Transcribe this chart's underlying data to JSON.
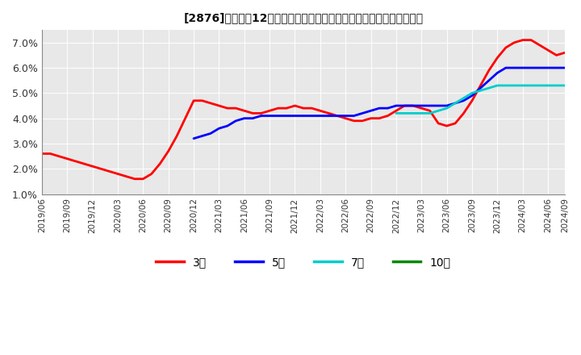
{
  "title_text": "[2876]　売上高12か月移動合計の対前年同期増減率の標準偏差の推移",
  "ylim": [
    0.01,
    0.075
  ],
  "yticks": [
    0.01,
    0.02,
    0.03,
    0.04,
    0.05,
    0.06,
    0.07
  ],
  "ytick_labels": [
    "1.0%",
    "2.0%",
    "3.0%",
    "4.0%",
    "5.0%",
    "6.0%",
    "7.0%"
  ],
  "series": {
    "3年": {
      "color": "#ff0000",
      "linewidth": 2.0,
      "x": [
        0,
        1,
        2,
        3,
        4,
        5,
        6,
        7,
        8,
        9,
        10,
        11,
        12,
        13,
        14,
        15,
        16,
        17,
        18,
        19,
        20,
        21,
        22,
        23,
        24,
        25,
        26,
        27,
        28,
        29,
        30,
        31,
        32,
        33,
        34,
        35,
        36,
        37,
        38,
        39,
        40,
        41,
        42,
        43,
        44,
        45,
        46,
        47,
        48,
        49,
        50,
        51,
        52,
        53,
        54,
        55,
        56,
        57,
        58,
        59,
        60,
        61,
        62
      ],
      "y": [
        0.026,
        0.026,
        0.025,
        0.024,
        0.023,
        0.022,
        0.021,
        0.02,
        0.019,
        0.018,
        0.017,
        0.016,
        0.016,
        0.018,
        0.022,
        0.027,
        0.033,
        0.04,
        0.047,
        0.047,
        0.046,
        0.045,
        0.044,
        0.044,
        0.043,
        0.042,
        0.042,
        0.043,
        0.044,
        0.044,
        0.045,
        0.044,
        0.044,
        0.043,
        0.042,
        0.041,
        0.04,
        0.039,
        0.039,
        0.04,
        0.04,
        0.041,
        0.043,
        0.045,
        0.045,
        0.044,
        0.043,
        0.038,
        0.037,
        0.038,
        0.042,
        0.047,
        0.053,
        0.059,
        0.064,
        0.068,
        0.07,
        0.071,
        0.071,
        0.069,
        0.067,
        0.065,
        0.066
      ]
    },
    "5年": {
      "color": "#0000ff",
      "linewidth": 2.0,
      "x": [
        18,
        19,
        20,
        21,
        22,
        23,
        24,
        25,
        26,
        27,
        28,
        29,
        30,
        31,
        32,
        33,
        34,
        35,
        36,
        37,
        38,
        39,
        40,
        41,
        42,
        43,
        44,
        45,
        46,
        47,
        48,
        49,
        50,
        51,
        52,
        53,
        54,
        55,
        56,
        57,
        58,
        59,
        60,
        61,
        62
      ],
      "y": [
        0.032,
        0.033,
        0.034,
        0.036,
        0.037,
        0.039,
        0.04,
        0.04,
        0.041,
        0.041,
        0.041,
        0.041,
        0.041,
        0.041,
        0.041,
        0.041,
        0.041,
        0.041,
        0.041,
        0.041,
        0.042,
        0.043,
        0.044,
        0.044,
        0.045,
        0.045,
        0.045,
        0.045,
        0.045,
        0.045,
        0.045,
        0.046,
        0.047,
        0.049,
        0.052,
        0.055,
        0.058,
        0.06,
        0.06,
        0.06,
        0.06,
        0.06,
        0.06,
        0.06,
        0.06
      ]
    },
    "7年": {
      "color": "#00cccc",
      "linewidth": 2.0,
      "x": [
        42,
        43,
        44,
        45,
        46,
        47,
        48,
        49,
        50,
        51,
        52,
        53,
        54,
        55,
        56,
        57,
        58,
        59,
        60,
        61,
        62
      ],
      "y": [
        0.042,
        0.042,
        0.042,
        0.042,
        0.042,
        0.043,
        0.044,
        0.046,
        0.048,
        0.05,
        0.051,
        0.052,
        0.053,
        0.053,
        0.053,
        0.053,
        0.053,
        0.053,
        0.053,
        0.053,
        0.053
      ]
    },
    "10年": {
      "color": "#008800",
      "linewidth": 2.0,
      "x": [],
      "y": []
    }
  },
  "xtick_positions": [
    0,
    3,
    6,
    9,
    12,
    15,
    18,
    21,
    24,
    27,
    30,
    33,
    36,
    39,
    42,
    45,
    48,
    51,
    54,
    57,
    60,
    62
  ],
  "xtick_labels": [
    "2019/06",
    "2019/09",
    "2019/12",
    "2020/03",
    "2020/06",
    "2020/09",
    "2020/12",
    "2021/03",
    "2021/06",
    "2021/09",
    "2021/12",
    "2022/03",
    "2022/06",
    "2022/09",
    "2022/12",
    "2023/03",
    "2023/06",
    "2023/09",
    "2023/12",
    "2024/03",
    "2024/06",
    "2024/09"
  ],
  "legend_labels": [
    "3年",
    "5年",
    "7年",
    "10年"
  ],
  "legend_colors": [
    "#ff0000",
    "#0000ff",
    "#00cccc",
    "#008800"
  ],
  "background_color": "#ffffff",
  "plot_bg_color": "#e8e8e8",
  "grid_color": "#ffffff"
}
